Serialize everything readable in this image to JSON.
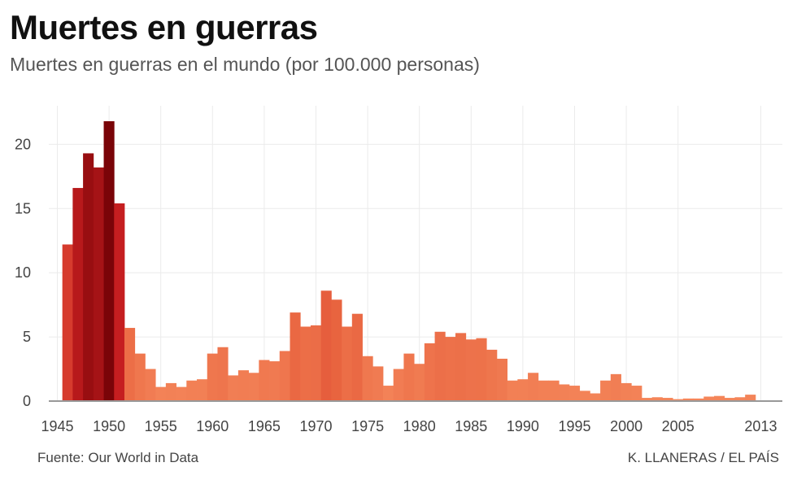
{
  "title": "Muertes en guerras",
  "subtitle": "Muertes en guerras en el mundo (por 100.000 personas)",
  "source": "Fuente: Our World in Data",
  "credit": "K. LLANERAS / EL PAÍS",
  "colors": {
    "grid": "#ebebeb",
    "axis": "#999999",
    "scale": [
      "#f4865a",
      "#e8633f",
      "#c91f21",
      "#7a0408"
    ]
  },
  "chart_data": {
    "type": "bar",
    "x_ticks": [
      "1945",
      "1950",
      "1955",
      "1960",
      "1965",
      "1970",
      "1975",
      "1980",
      "1985",
      "1990",
      "1995",
      "2000",
      "2005",
      "2013"
    ],
    "y_ticks": [
      "0",
      "5",
      "10",
      "15",
      "20"
    ],
    "ylim": [
      0,
      23
    ],
    "grid": true,
    "categories": [
      1946,
      1947,
      1948,
      1949,
      1950,
      1951,
      1952,
      1953,
      1954,
      1955,
      1956,
      1957,
      1958,
      1959,
      1960,
      1961,
      1962,
      1963,
      1964,
      1965,
      1966,
      1967,
      1968,
      1969,
      1970,
      1971,
      1972,
      1973,
      1974,
      1975,
      1976,
      1977,
      1978,
      1979,
      1980,
      1981,
      1982,
      1983,
      1984,
      1985,
      1986,
      1987,
      1988,
      1989,
      1990,
      1991,
      1992,
      1993,
      1994,
      1995,
      1996,
      1997,
      1998,
      1999,
      2000,
      2001,
      2002,
      2003,
      2004,
      2005,
      2006,
      2007,
      2008,
      2009,
      2010,
      2011,
      2012,
      2013
    ],
    "values": [
      12.2,
      16.6,
      19.3,
      18.2,
      21.8,
      15.4,
      5.7,
      3.7,
      2.5,
      1.1,
      1.4,
      1.1,
      1.6,
      1.7,
      3.7,
      4.2,
      2.0,
      2.4,
      2.2,
      3.2,
      3.1,
      3.9,
      6.9,
      5.8,
      5.9,
      8.6,
      7.9,
      5.8,
      6.8,
      3.5,
      2.7,
      1.2,
      2.5,
      3.7,
      2.9,
      4.5,
      5.4,
      5.0,
      5.3,
      4.8,
      4.9,
      4.0,
      3.3,
      1.6,
      1.7,
      2.2,
      1.6,
      1.6,
      1.3,
      1.2,
      0.8,
      0.6,
      1.6,
      2.1,
      1.4,
      1.2,
      0.25,
      0.3,
      0.25,
      0.15,
      0.2,
      0.2,
      0.35,
      0.4,
      0.25,
      0.3,
      0.5,
      0.0
    ]
  }
}
